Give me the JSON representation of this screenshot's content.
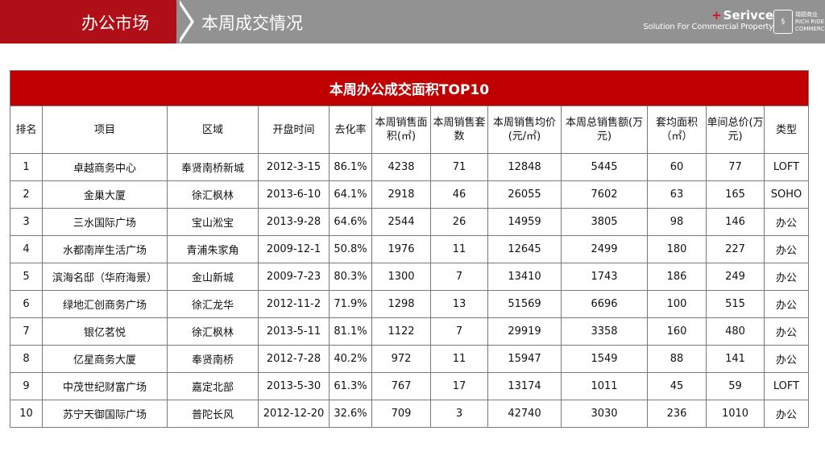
{
  "header": {
    "section_title": "办公市场",
    "page_title": "本周成交情况",
    "brand_name": "Serivce",
    "brand_plus": "+",
    "brand_tagline": "Solution For Commercial Property",
    "logo_text": "瑞德商业\nRICH RIDE\nCOMMERCE"
  },
  "table": {
    "caption": "本周办公成交面积TOP10",
    "columns": [
      "排名",
      "项目",
      "区域",
      "开盘时间",
      "去化率",
      "本周销售面积(㎡)",
      "本周销售套数",
      "本周销售均价(元/㎡)",
      "本周总销售额(万元)",
      "套均面积（㎡）",
      "单间总价(万元)",
      "类型"
    ],
    "rows": [
      [
        "1",
        "卓越商务中心",
        "奉贤南桥新城",
        "2012-3-15",
        "86.1%",
        "4238",
        "71",
        "12848",
        "5445",
        "60",
        "77",
        "LOFT"
      ],
      [
        "2",
        "金巢大厦",
        "徐汇枫林",
        "2013-6-10",
        "64.1%",
        "2918",
        "46",
        "26055",
        "7602",
        "63",
        "165",
        "SOHO"
      ],
      [
        "3",
        "三水国际广场",
        "宝山淞宝",
        "2013-9-28",
        "64.6%",
        "2544",
        "26",
        "14959",
        "3805",
        "98",
        "146",
        "办公"
      ],
      [
        "4",
        "水都南岸生活广场",
        "青浦朱家角",
        "2009-12-1",
        "50.8%",
        "1976",
        "11",
        "12645",
        "2499",
        "180",
        "227",
        "办公"
      ],
      [
        "5",
        "滨海名邸（华府海景）",
        "金山新城",
        "2009-7-23",
        "80.3%",
        "1300",
        "7",
        "13410",
        "1743",
        "186",
        "249",
        "办公"
      ],
      [
        "6",
        "绿地汇创商务广场",
        "徐汇龙华",
        "2012-11-2",
        "71.9%",
        "1298",
        "13",
        "51569",
        "6696",
        "100",
        "515",
        "办公"
      ],
      [
        "7",
        "银亿茗悦",
        "徐汇枫林",
        "2013-5-11",
        "81.1%",
        "1122",
        "7",
        "29919",
        "3358",
        "160",
        "480",
        "办公"
      ],
      [
        "8",
        "亿星商务大厦",
        "奉贤南桥",
        "2012-7-28",
        "40.2%",
        "972",
        "11",
        "15947",
        "1549",
        "88",
        "141",
        "办公"
      ],
      [
        "9",
        "中茂世纪财富广场",
        "嘉定北部",
        "2013-5-30",
        "61.3%",
        "767",
        "17",
        "13174",
        "1011",
        "45",
        "59",
        "LOFT"
      ],
      [
        "10",
        "苏宁天御国际广场",
        "普陀长风",
        "2012-12-20",
        "32.6%",
        "709",
        "3",
        "42740",
        "3030",
        "236",
        "1010",
        "办公"
      ]
    ]
  }
}
